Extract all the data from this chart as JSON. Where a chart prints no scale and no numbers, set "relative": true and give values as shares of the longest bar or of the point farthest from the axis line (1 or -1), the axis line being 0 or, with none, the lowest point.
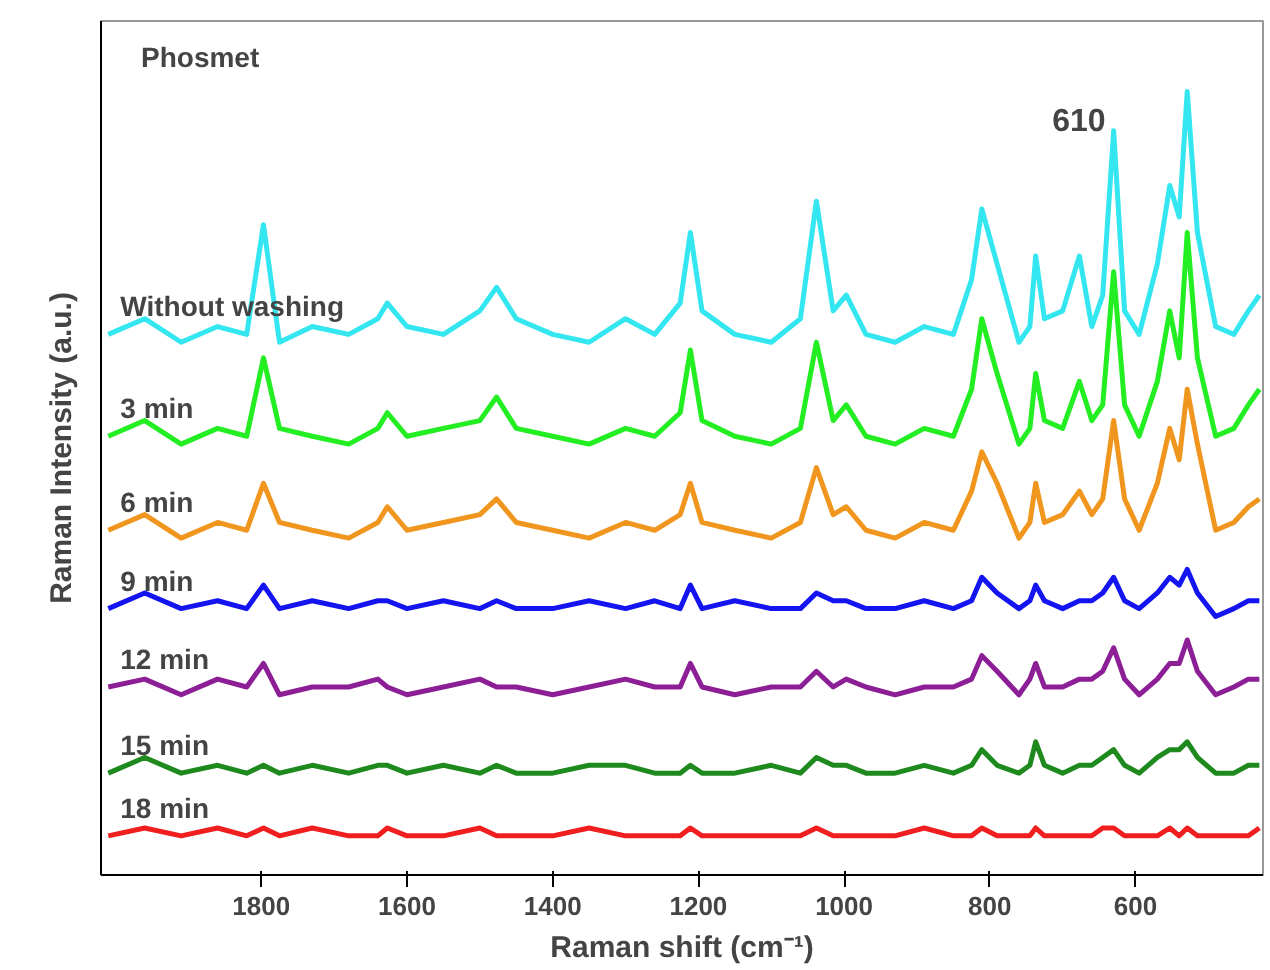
{
  "chart_data": {
    "type": "line",
    "relative": true,
    "xlabel": "Raman shift (cm⁻¹)",
    "ylabel": "Raman Intensity (a.u.)",
    "xlim": [
      2020,
      425
    ],
    "xticks": [
      1800,
      1600,
      1400,
      1200,
      1000,
      800,
      600
    ],
    "grid": false,
    "legend": false,
    "line_style": "solid",
    "marker": "none",
    "annotations": [
      "Phosmet",
      {
        "text": "610",
        "x": 630,
        "y": 0.95
      }
    ],
    "x": [
      2010,
      1960,
      1910,
      1860,
      1820,
      1797,
      1775,
      1730,
      1680,
      1640,
      1627,
      1600,
      1550,
      1500,
      1477,
      1450,
      1400,
      1350,
      1300,
      1260,
      1225,
      1211,
      1195,
      1150,
      1100,
      1060,
      1038,
      1015,
      997,
      970,
      930,
      890,
      850,
      825,
      811,
      790,
      760,
      745,
      737,
      725,
      700,
      677,
      660,
      645,
      630,
      615,
      595,
      570,
      553,
      540,
      529,
      515,
      490,
      465,
      445,
      430
    ],
    "series": [
      {
        "name": "Without washing",
        "color": "#33e6f0",
        "values": [
          0.69,
          0.71,
          0.68,
          0.7,
          0.69,
          0.83,
          0.68,
          0.7,
          0.69,
          0.71,
          0.73,
          0.7,
          0.69,
          0.72,
          0.75,
          0.71,
          0.69,
          0.68,
          0.71,
          0.69,
          0.73,
          0.82,
          0.72,
          0.69,
          0.68,
          0.71,
          0.86,
          0.72,
          0.74,
          0.69,
          0.68,
          0.7,
          0.69,
          0.76,
          0.85,
          0.78,
          0.68,
          0.7,
          0.79,
          0.71,
          0.72,
          0.79,
          0.7,
          0.74,
          0.95,
          0.72,
          0.69,
          0.78,
          0.88,
          0.84,
          1.0,
          0.82,
          0.7,
          0.69,
          0.72,
          0.74
        ]
      },
      {
        "name": "3 min",
        "color": "#22ee22",
        "values": [
          0.56,
          0.58,
          0.55,
          0.57,
          0.56,
          0.66,
          0.57,
          0.56,
          0.55,
          0.57,
          0.59,
          0.56,
          0.57,
          0.58,
          0.61,
          0.57,
          0.56,
          0.55,
          0.57,
          0.56,
          0.59,
          0.67,
          0.58,
          0.56,
          0.55,
          0.57,
          0.68,
          0.58,
          0.6,
          0.56,
          0.55,
          0.57,
          0.56,
          0.62,
          0.71,
          0.64,
          0.55,
          0.57,
          0.64,
          0.58,
          0.57,
          0.63,
          0.58,
          0.6,
          0.77,
          0.6,
          0.56,
          0.63,
          0.72,
          0.66,
          0.82,
          0.66,
          0.56,
          0.57,
          0.6,
          0.62
        ]
      },
      {
        "name": "6 min",
        "color": "#f0961e",
        "values": [
          0.44,
          0.46,
          0.43,
          0.45,
          0.44,
          0.5,
          0.45,
          0.44,
          0.43,
          0.45,
          0.47,
          0.44,
          0.45,
          0.46,
          0.48,
          0.45,
          0.44,
          0.43,
          0.45,
          0.44,
          0.46,
          0.5,
          0.45,
          0.44,
          0.43,
          0.45,
          0.52,
          0.46,
          0.47,
          0.44,
          0.43,
          0.45,
          0.44,
          0.49,
          0.54,
          0.5,
          0.43,
          0.45,
          0.5,
          0.45,
          0.46,
          0.49,
          0.46,
          0.48,
          0.58,
          0.48,
          0.44,
          0.5,
          0.57,
          0.53,
          0.62,
          0.55,
          0.44,
          0.45,
          0.47,
          0.48
        ]
      },
      {
        "name": "9 min",
        "color": "#1414f0",
        "values": [
          0.34,
          0.36,
          0.34,
          0.35,
          0.34,
          0.37,
          0.34,
          0.35,
          0.34,
          0.35,
          0.35,
          0.34,
          0.35,
          0.34,
          0.35,
          0.34,
          0.34,
          0.35,
          0.34,
          0.35,
          0.34,
          0.37,
          0.34,
          0.35,
          0.34,
          0.34,
          0.36,
          0.35,
          0.35,
          0.34,
          0.34,
          0.35,
          0.34,
          0.35,
          0.38,
          0.36,
          0.34,
          0.35,
          0.37,
          0.35,
          0.34,
          0.35,
          0.35,
          0.36,
          0.38,
          0.35,
          0.34,
          0.36,
          0.38,
          0.37,
          0.39,
          0.36,
          0.33,
          0.34,
          0.35,
          0.35
        ]
      },
      {
        "name": "12 min",
        "color": "#8c1e96",
        "values": [
          0.24,
          0.25,
          0.23,
          0.25,
          0.24,
          0.27,
          0.23,
          0.24,
          0.24,
          0.25,
          0.24,
          0.23,
          0.24,
          0.25,
          0.24,
          0.24,
          0.23,
          0.24,
          0.25,
          0.24,
          0.24,
          0.27,
          0.24,
          0.23,
          0.24,
          0.24,
          0.26,
          0.24,
          0.25,
          0.24,
          0.23,
          0.24,
          0.24,
          0.25,
          0.28,
          0.26,
          0.23,
          0.25,
          0.27,
          0.24,
          0.24,
          0.25,
          0.25,
          0.26,
          0.29,
          0.25,
          0.23,
          0.25,
          0.27,
          0.27,
          0.3,
          0.26,
          0.23,
          0.24,
          0.25,
          0.25
        ]
      },
      {
        "name": "15 min",
        "color": "#1e8a1e",
        "values": [
          0.13,
          0.15,
          0.13,
          0.14,
          0.13,
          0.14,
          0.13,
          0.14,
          0.13,
          0.14,
          0.14,
          0.13,
          0.14,
          0.13,
          0.14,
          0.13,
          0.13,
          0.14,
          0.14,
          0.13,
          0.13,
          0.14,
          0.13,
          0.13,
          0.14,
          0.13,
          0.15,
          0.14,
          0.14,
          0.13,
          0.13,
          0.14,
          0.13,
          0.14,
          0.16,
          0.14,
          0.13,
          0.14,
          0.17,
          0.14,
          0.13,
          0.14,
          0.14,
          0.15,
          0.16,
          0.14,
          0.13,
          0.15,
          0.16,
          0.16,
          0.17,
          0.15,
          0.13,
          0.13,
          0.14,
          0.14
        ]
      },
      {
        "name": "18 min",
        "color": "#f01e1e",
        "values": [
          0.05,
          0.06,
          0.05,
          0.06,
          0.05,
          0.06,
          0.05,
          0.06,
          0.05,
          0.05,
          0.06,
          0.05,
          0.05,
          0.06,
          0.05,
          0.05,
          0.05,
          0.06,
          0.05,
          0.05,
          0.05,
          0.06,
          0.05,
          0.05,
          0.05,
          0.05,
          0.06,
          0.05,
          0.05,
          0.05,
          0.05,
          0.06,
          0.05,
          0.05,
          0.06,
          0.05,
          0.05,
          0.05,
          0.06,
          0.05,
          0.05,
          0.05,
          0.05,
          0.06,
          0.06,
          0.05,
          0.05,
          0.05,
          0.06,
          0.05,
          0.06,
          0.05,
          0.05,
          0.05,
          0.05,
          0.06
        ]
      }
    ]
  }
}
